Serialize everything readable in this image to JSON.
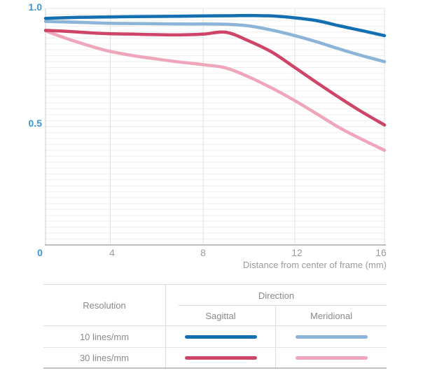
{
  "colors": {
    "accent_blue_labels": "#3e96d2",
    "gray_labels": "#9b9b9b",
    "series_10_sagittal": "#136fb2",
    "series_10_meridional": "#8cb4d8",
    "series_30_sagittal": "#cf4568",
    "series_30_meridional": "#efa6ba"
  },
  "chart_data": {
    "type": "line",
    "title": "",
    "xlabel": "Distance from center of frame (mm)",
    "ylabel": "",
    "xlim": [
      0,
      16
    ],
    "ylim": [
      0,
      1.0
    ],
    "xticks": [
      0,
      4,
      8,
      12,
      16
    ],
    "xtick_labels": [
      "0",
      "4",
      "8",
      "12",
      "16"
    ],
    "yticks": [
      1.0,
      0.5
    ],
    "ytick_labels": [
      "1.0",
      "0.5"
    ],
    "grid": "minor horizontal lines every 0.025, vertical lines at labeled x ticks",
    "legend_position": "bottom-table",
    "x": [
      0,
      1,
      2,
      3,
      4,
      5,
      6,
      7,
      8,
      9,
      10,
      11,
      12,
      13,
      14,
      15,
      16
    ],
    "series": [
      {
        "name": "10 lines/mm Sagittal",
        "resolution": "10 lines/mm",
        "direction": "Sagittal",
        "color": "#136fb2",
        "values": [
          0.958,
          0.96,
          0.962,
          0.963,
          0.964,
          0.965,
          0.966,
          0.967,
          0.968,
          0.969,
          0.97,
          0.968,
          0.96,
          0.948,
          0.926,
          0.906,
          0.885
        ]
      },
      {
        "name": "10 lines/mm Meridional",
        "resolution": "10 lines/mm",
        "direction": "Meridional",
        "color": "#8cb4d8",
        "values": [
          0.945,
          0.943,
          0.941,
          0.939,
          0.937,
          0.936,
          0.935,
          0.934,
          0.934,
          0.933,
          0.926,
          0.908,
          0.885,
          0.858,
          0.828,
          0.8,
          0.775
        ]
      },
      {
        "name": "30 lines/mm Sagittal",
        "resolution": "30 lines/mm",
        "direction": "Sagittal",
        "color": "#cf4568",
        "values": [
          0.907,
          0.904,
          0.9,
          0.896,
          0.893,
          0.891,
          0.889,
          0.888,
          0.891,
          0.899,
          0.862,
          0.815,
          0.75,
          0.685,
          0.622,
          0.562,
          0.507
        ]
      },
      {
        "name": "30 lines/mm Meridional",
        "resolution": "30 lines/mm",
        "direction": "Meridional",
        "color": "#efa6ba",
        "values": [
          0.905,
          0.88,
          0.857,
          0.836,
          0.818,
          0.8,
          0.786,
          0.773,
          0.762,
          0.748,
          0.71,
          0.663,
          0.61,
          0.553,
          0.495,
          0.446,
          0.4
        ]
      }
    ]
  },
  "legend_table": {
    "resolution_header": "Resolution",
    "direction_header": "Direction",
    "col_headers": [
      "Sagittal",
      "Meridional"
    ],
    "rows": [
      {
        "resolution": "10 lines/mm"
      },
      {
        "resolution": "30 lines/mm"
      }
    ]
  }
}
